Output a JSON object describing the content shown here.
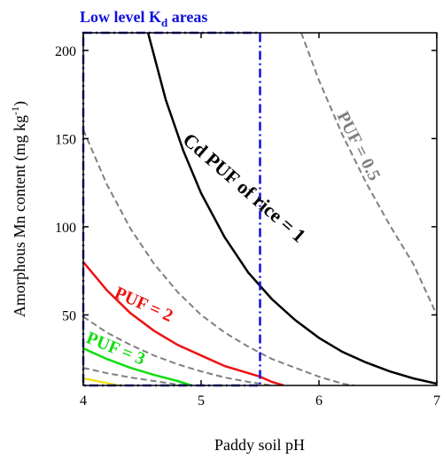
{
  "chart_data": {
    "type": "line",
    "xlabel": "Paddy soil pH",
    "ylabel": "Amorphous Mn content (mg kg",
    "ylabel_sup": "-1",
    "ylabel_close": ")",
    "xlim": [
      4,
      7
    ],
    "ylim": [
      10,
      210
    ],
    "xticks": [
      "4",
      "5",
      "6",
      "7"
    ],
    "yticks": [
      "50",
      "100",
      "150",
      "200"
    ],
    "region": {
      "label": "Low level K",
      "label_sub": "d",
      "label_suffix": " areas",
      "x_range": [
        4,
        5.5
      ],
      "color": "#1010dd"
    },
    "series": [
      {
        "name": "Cd PUF of rice = 1",
        "color": "#000000",
        "dash": false,
        "points": [
          [
            4.55,
            210
          ],
          [
            4.7,
            172
          ],
          [
            4.85,
            143
          ],
          [
            5.0,
            119
          ],
          [
            5.2,
            94
          ],
          [
            5.4,
            74
          ],
          [
            5.6,
            59
          ],
          [
            5.8,
            47
          ],
          [
            6.0,
            37
          ],
          [
            6.2,
            29
          ],
          [
            6.4,
            23
          ],
          [
            6.6,
            18
          ],
          [
            6.8,
            14
          ],
          [
            7.0,
            11
          ]
        ]
      },
      {
        "name": "PUF = 2",
        "color": "#ee1111",
        "dash": false,
        "points": [
          [
            4.0,
            80
          ],
          [
            4.2,
            64
          ],
          [
            4.4,
            51
          ],
          [
            4.6,
            41
          ],
          [
            4.8,
            33
          ],
          [
            5.0,
            27
          ],
          [
            5.2,
            21
          ],
          [
            5.4,
            17
          ],
          [
            5.5,
            15
          ],
          [
            5.6,
            12
          ],
          [
            5.7,
            10
          ]
        ]
      },
      {
        "name": "PUF = 3",
        "color": "#11dd11",
        "dash": false,
        "points": [
          [
            4.0,
            31
          ],
          [
            4.2,
            25
          ],
          [
            4.4,
            20
          ],
          [
            4.6,
            16
          ],
          [
            4.8,
            12.5
          ],
          [
            4.92,
            10
          ]
        ]
      },
      {
        "name": "",
        "color": "#f0e020",
        "dash": false,
        "points": [
          [
            4.0,
            14
          ],
          [
            4.15,
            12
          ],
          [
            4.3,
            10
          ]
        ]
      },
      {
        "name": "PUF = 0.5",
        "color": "#808080",
        "dash": true,
        "points": [
          [
            5.85,
            210
          ],
          [
            6.0,
            183
          ],
          [
            6.2,
            152
          ],
          [
            6.4,
            125
          ],
          [
            6.6,
            101
          ],
          [
            6.8,
            79
          ],
          [
            7.0,
            50
          ]
        ]
      },
      {
        "name": "",
        "color": "#808080",
        "dash": true,
        "points": [
          [
            4.0,
            155
          ],
          [
            4.2,
            124
          ],
          [
            4.4,
            99
          ],
          [
            4.6,
            79
          ],
          [
            4.8,
            63
          ],
          [
            5.0,
            50
          ],
          [
            5.2,
            40
          ],
          [
            5.4,
            32
          ],
          [
            5.6,
            25
          ],
          [
            5.8,
            20
          ],
          [
            6.0,
            15
          ],
          [
            6.2,
            11
          ],
          [
            6.3,
            10
          ]
        ]
      },
      {
        "name": "",
        "color": "#808080",
        "dash": true,
        "points": [
          [
            4.0,
            49
          ],
          [
            4.2,
            40
          ],
          [
            4.4,
            33
          ],
          [
            4.6,
            27
          ],
          [
            4.8,
            22
          ],
          [
            5.0,
            18
          ],
          [
            5.2,
            14.5
          ],
          [
            5.4,
            12
          ],
          [
            5.6,
            10
          ]
        ]
      },
      {
        "name": "",
        "color": "#808080",
        "dash": true,
        "points": [
          [
            4.0,
            20
          ],
          [
            4.2,
            17
          ],
          [
            4.4,
            14.5
          ],
          [
            4.6,
            12.5
          ],
          [
            4.8,
            10.5
          ],
          [
            4.9,
            10
          ]
        ]
      }
    ],
    "annotations": [
      {
        "text": "Cd PUF of rice = 1",
        "color": "#000000"
      },
      {
        "text": "PUF = 0.5",
        "color": "#808080"
      },
      {
        "text": "PUF = 2",
        "color": "#ee1111"
      },
      {
        "text": "PUF = 3",
        "color": "#11dd11"
      }
    ]
  }
}
